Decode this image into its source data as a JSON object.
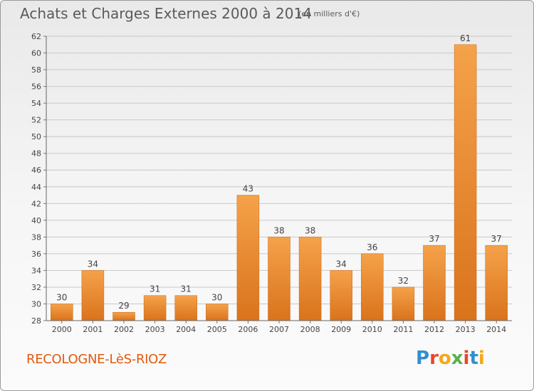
{
  "title": "Achats et Charges Externes 2000 à 2014",
  "subtitle": "(en milliers d'€)",
  "commune": "RECOLOGNE-LèS-RIOZ",
  "logo_text": "Proxiti",
  "colors": {
    "bar_light": "#f5a24a",
    "bar_dark": "#d9731c",
    "commune": "#e05a10",
    "text": "#5a5a5a"
  },
  "chart_data": {
    "type": "bar",
    "title": "Achats et Charges Externes 2000 à 2014",
    "subtitle": "(en milliers d'€)",
    "categories": [
      "2000",
      "2001",
      "2002",
      "2003",
      "2004",
      "2005",
      "2006",
      "2007",
      "2008",
      "2009",
      "2010",
      "2011",
      "2012",
      "2013",
      "2014"
    ],
    "values": [
      30,
      34,
      29,
      31,
      31,
      30,
      43,
      38,
      38,
      34,
      36,
      32,
      37,
      61,
      37
    ],
    "ylim": [
      28,
      62
    ],
    "yticks": [
      28,
      30,
      32,
      34,
      36,
      38,
      40,
      42,
      44,
      46,
      48,
      50,
      52,
      54,
      56,
      58,
      60,
      62
    ],
    "grid": true,
    "xlabel": "",
    "ylabel": ""
  }
}
